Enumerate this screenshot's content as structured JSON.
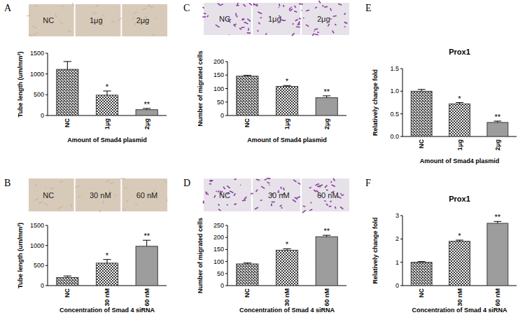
{
  "chart_data": [
    {
      "type": "bar",
      "panel": "A",
      "image_labels": [
        "NC",
        "1μg",
        "2μg"
      ],
      "y_label": "Tube length (um/mm²)",
      "x_label": "Amount of Smad4 plasmid",
      "categories": [
        "NC",
        "1μg",
        "2μg"
      ],
      "values": [
        1110,
        490,
        140
      ],
      "errors": [
        190,
        100,
        30
      ],
      "significance": [
        null,
        "*",
        "**"
      ],
      "color": "#3a3a3a",
      "ylim": [
        0,
        1500
      ],
      "yticks": [
        0,
        500,
        1000,
        1500
      ]
    },
    {
      "type": "bar",
      "panel": "B",
      "image_labels": [
        "NC",
        "30 nM",
        "60 nM"
      ],
      "y_label": "Tube length (um/mm²)",
      "x_label": "Concentration of Smad 4 siRNA",
      "categories": [
        "NC",
        "30 nM",
        "60 nM"
      ],
      "values": [
        200,
        560,
        980
      ],
      "errors": [
        40,
        90,
        150
      ],
      "significance": [
        null,
        "*",
        "**"
      ],
      "color": "#3a3a3a",
      "ylim": [
        0,
        1500
      ],
      "yticks": [
        0,
        500,
        1000,
        1500
      ]
    },
    {
      "type": "bar",
      "panel": "C",
      "image_labels": [
        "NC",
        "1μg",
        "2μg"
      ],
      "y_label": "Number of migrated cells",
      "x_label": "Amount of Smad4 plasmid",
      "categories": [
        "NC",
        "1μg",
        "2μg"
      ],
      "values": [
        146,
        108,
        66
      ],
      "errors": [
        3,
        3,
        7
      ],
      "significance": [
        null,
        "*",
        "**"
      ],
      "color": "#3a3a3a",
      "ylim": [
        0,
        200
      ],
      "yticks": [
        0,
        50,
        100,
        150,
        200
      ]
    },
    {
      "type": "bar",
      "panel": "D",
      "image_labels": [
        "NC",
        "30 nM",
        "60 nM"
      ],
      "y_label": "Number of migrated cells",
      "x_label": "Concentration of Smad 4 siRNA",
      "categories": [
        "NC",
        "30 nM",
        "60 nM"
      ],
      "values": [
        90,
        147,
        203
      ],
      "errors": [
        4,
        6,
        6
      ],
      "significance": [
        null,
        "*",
        "**"
      ],
      "color": "#3a3a3a",
      "ylim": [
        0,
        250
      ],
      "yticks": [
        0,
        50,
        100,
        150,
        200,
        250
      ]
    },
    {
      "type": "bar",
      "panel": "E",
      "title": "Prox1",
      "y_label": "Relatively change fold",
      "x_label": "Amount of Smad4 plasmid",
      "categories": [
        "NC",
        "1μg",
        "2μg"
      ],
      "values": [
        1.0,
        0.72,
        0.31
      ],
      "errors": [
        0.04,
        0.03,
        0.03
      ],
      "significance": [
        null,
        "*",
        "**"
      ],
      "color": "#3a3a3a",
      "ylim": [
        0,
        1.5
      ],
      "yticks": [
        {
          "value": 0,
          "label": "0.0"
        },
        {
          "value": 0.5,
          "label": "0.5"
        },
        {
          "value": 1,
          "label": "1.0"
        },
        {
          "value": 1.5,
          "label": "1.5"
        }
      ]
    },
    {
      "type": "bar",
      "panel": "F",
      "title": "Prox1",
      "y_label": "Relatively change fold",
      "x_label": "Concentration of Smad 4 siRNA",
      "categories": [
        "NC",
        "30 nM",
        "60 nM"
      ],
      "values": [
        1.0,
        1.9,
        2.67
      ],
      "errors": [
        0.03,
        0.05,
        0.08
      ],
      "significance": [
        null,
        "*",
        "**"
      ],
      "color": "#3a3a3a",
      "ylim": [
        0,
        3
      ],
      "yticks": [
        0,
        1,
        2,
        3
      ]
    }
  ]
}
